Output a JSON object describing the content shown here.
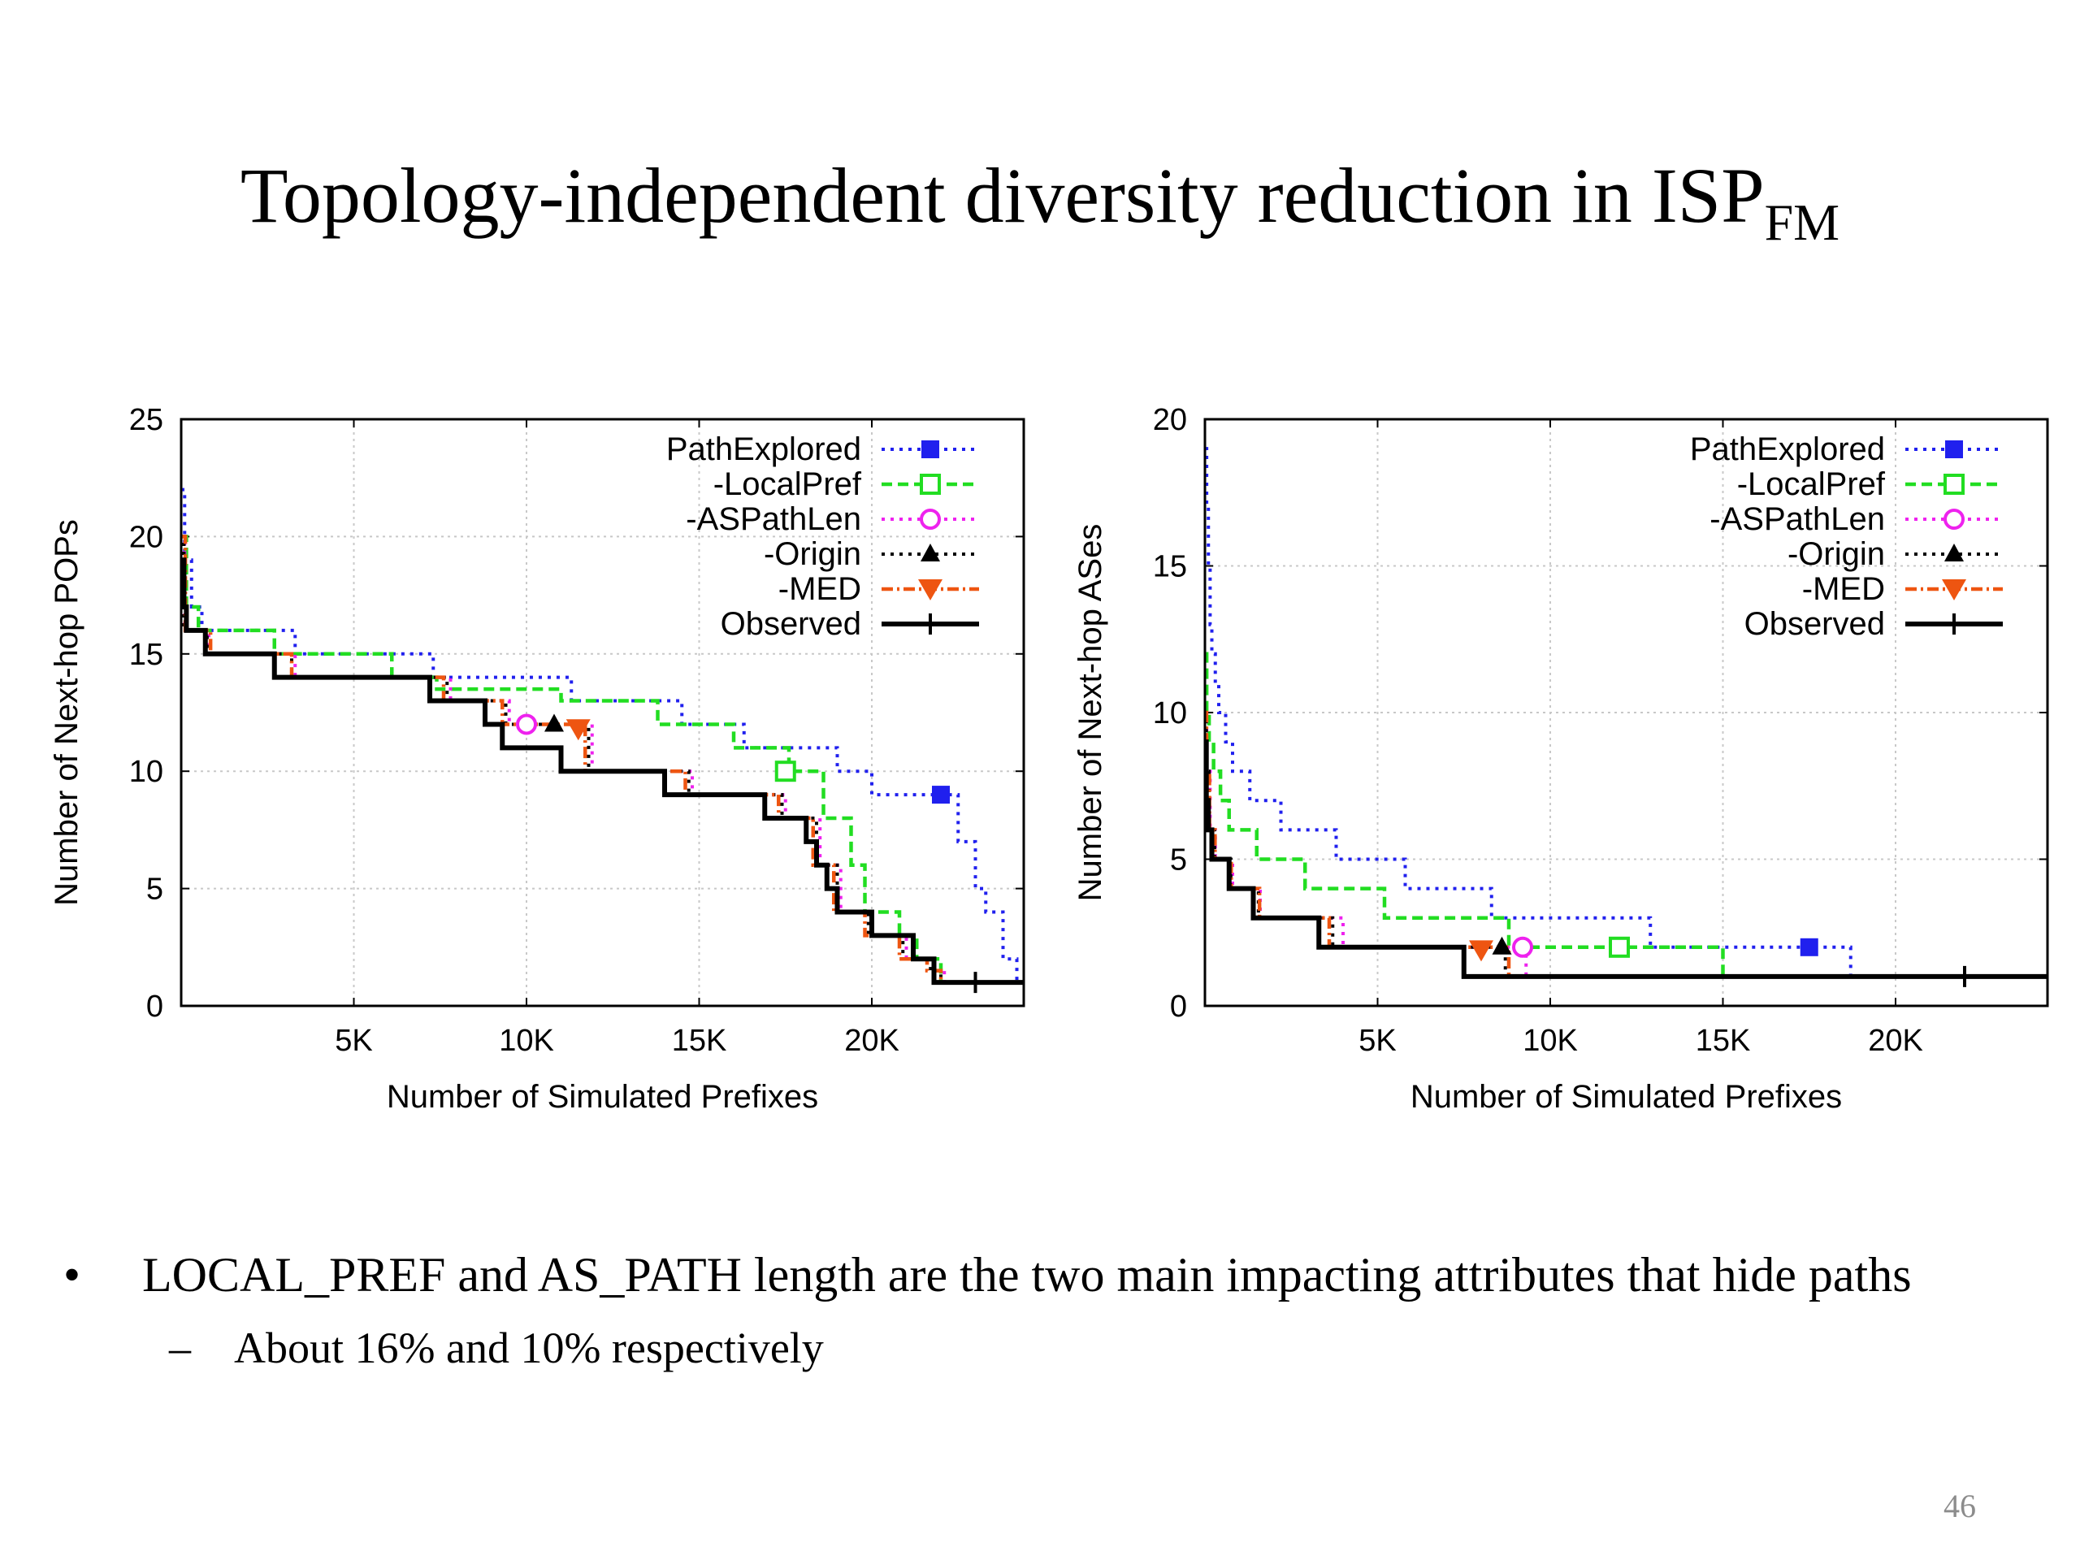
{
  "slide": {
    "title_main": "Topology-independent diversity reduction in ISP",
    "title_sub": "FM",
    "bullets": [
      {
        "text": "LOCAL_PREF and AS_PATH length are the two main impacting attributes that hide paths",
        "sub": "About 16% and 10% respectively"
      }
    ],
    "bullet_char": "•",
    "sub_bullet_char": "–",
    "page_number": "46"
  },
  "colors": {
    "PathExplored": "#2020ee",
    "-LocalPref": "#22dd22",
    "-ASPathLen": "#ee22ee",
    "-Origin": "#000000",
    "-MED": "#ee5511",
    "Observed": "#000000"
  },
  "chart_data": [
    {
      "type": "line",
      "xlabel": "Number of Simulated Prefixes",
      "ylabel": "Number of Next-hop POPs",
      "xlim": [
        0,
        24400
      ],
      "ylim": [
        0,
        25
      ],
      "xticks": [
        5000,
        10000,
        15000,
        20000
      ],
      "xtick_labels": [
        "5K",
        "10K",
        "15K",
        "20K"
      ],
      "yticks": [
        0,
        5,
        10,
        15,
        20,
        25
      ],
      "ytick_labels": [
        "0",
        "5",
        "10",
        "15",
        "20",
        "25"
      ],
      "grid": true,
      "legend_position": "top-right",
      "series": [
        {
          "name": "PathExplored",
          "marker": "filled-square",
          "dash": "dotted",
          "marker_at": [
            22000,
            9
          ],
          "x": [
            0,
            100,
            300,
            600,
            3300,
            7300,
            11300,
            14500,
            16300,
            19000,
            20000,
            22500,
            23000,
            23300,
            23800,
            24200,
            24400
          ],
          "y": [
            22,
            19,
            17,
            16,
            15,
            14,
            13,
            12,
            11,
            10,
            9,
            7,
            5,
            4,
            2,
            1,
            1
          ]
        },
        {
          "name": "-LocalPref",
          "marker": "open-square",
          "dash": "dashed",
          "marker_at": [
            17500,
            10
          ],
          "x": [
            0,
            150,
            500,
            2700,
            6100,
            7400,
            11000,
            13800,
            16000,
            17600,
            18600,
            19400,
            19800,
            20800,
            21300,
            22000,
            24400
          ],
          "y": [
            20,
            17,
            16,
            15,
            14,
            13.5,
            13,
            12,
            11,
            10,
            8,
            6,
            4,
            3,
            2,
            1,
            1
          ]
        },
        {
          "name": "-ASPathLen",
          "marker": "open-circle",
          "dash": "dotted",
          "marker_at": [
            10000,
            12
          ],
          "x": [
            0,
            100,
            800,
            3300,
            7800,
            9500,
            11900,
            14800,
            17500,
            18500,
            19100,
            20000,
            21000,
            21800,
            22100,
            24400
          ],
          "y": [
            20,
            16,
            15,
            14,
            13,
            12,
            10,
            9,
            8,
            6,
            4,
            3,
            2,
            1.5,
            1,
            1
          ]
        },
        {
          "name": "-Origin",
          "marker": "filled-triangle-up",
          "dash": "dotted",
          "marker_at": [
            10800,
            12
          ],
          "x": [
            0,
            80,
            750,
            3200,
            7700,
            9400,
            11800,
            14700,
            17400,
            18400,
            19000,
            19900,
            20900,
            21700,
            22000,
            24400
          ],
          "y": [
            20,
            16,
            15,
            14,
            13,
            12,
            10,
            9,
            8,
            6,
            4,
            3,
            2,
            1.5,
            1,
            1
          ]
        },
        {
          "name": "-MED",
          "marker": "filled-triangle-down",
          "dash": "dash-dot",
          "marker_at": [
            11500,
            11.8
          ],
          "x": [
            0,
            120,
            850,
            3200,
            7600,
            9300,
            11700,
            14600,
            17300,
            18300,
            18900,
            19800,
            20800,
            21600,
            22000,
            24400
          ],
          "y": [
            20,
            16,
            15,
            14,
            13,
            12,
            10,
            9,
            8,
            6,
            4,
            3,
            2,
            1.5,
            1,
            1
          ]
        },
        {
          "name": "Observed",
          "marker": "plus",
          "dash": "solid",
          "marker_at": [
            23000,
            1
          ],
          "x": [
            0,
            80,
            150,
            700,
            2700,
            7200,
            8800,
            9300,
            11000,
            14000,
            16900,
            18100,
            18400,
            18700,
            19000,
            20000,
            21200,
            21800,
            24400
          ],
          "y": [
            19,
            17,
            16,
            15,
            14,
            13,
            12,
            11,
            10,
            9,
            8,
            7,
            6,
            5,
            4,
            3,
            2,
            1,
            1
          ]
        }
      ]
    },
    {
      "type": "line",
      "xlabel": "Number of Simulated Prefixes",
      "ylabel": "Number of Next-hop ASes",
      "xlim": [
        0,
        24400
      ],
      "ylim": [
        0,
        20
      ],
      "xticks": [
        5000,
        10000,
        15000,
        20000
      ],
      "xtick_labels": [
        "5K",
        "10K",
        "15K",
        "20K"
      ],
      "yticks": [
        0,
        5,
        10,
        15,
        20
      ],
      "ytick_labels": [
        "0",
        "5",
        "10",
        "15",
        "20"
      ],
      "grid": true,
      "legend_position": "top-right",
      "series": [
        {
          "name": "PathExplored",
          "marker": "filled-square",
          "dash": "dotted",
          "marker_at": [
            17500,
            2
          ],
          "x": [
            0,
            50,
            100,
            150,
            200,
            300,
            400,
            600,
            800,
            1300,
            2200,
            3800,
            5800,
            8300,
            12900,
            18700,
            24400
          ],
          "y": [
            19,
            17,
            15,
            13,
            12,
            11,
            10,
            9,
            8,
            7,
            6,
            5,
            4,
            3,
            2,
            1,
            1
          ]
        },
        {
          "name": "-LocalPref",
          "marker": "open-square",
          "dash": "dashed",
          "marker_at": [
            12000,
            2
          ],
          "x": [
            0,
            50,
            120,
            250,
            450,
            700,
            1500,
            2900,
            5200,
            8800,
            15000,
            24400
          ],
          "y": [
            12,
            10,
            9,
            8,
            7,
            6,
            5,
            4,
            3,
            2,
            1,
            1
          ]
        },
        {
          "name": "-ASPathLen",
          "marker": "open-circle",
          "dash": "dotted",
          "marker_at": [
            9200,
            2
          ],
          "x": [
            0,
            50,
            150,
            300,
            800,
            1600,
            4000,
            9300,
            24400
          ],
          "y": [
            10,
            8,
            6,
            5,
            4,
            3,
            2,
            1,
            1
          ]
        },
        {
          "name": "-Origin",
          "marker": "filled-triangle-up",
          "dash": "dotted",
          "marker_at": [
            8600,
            2
          ],
          "x": [
            0,
            40,
            120,
            280,
            750,
            1550,
            3700,
            8700,
            24400
          ],
          "y": [
            10,
            8,
            6,
            5,
            4,
            3,
            2,
            1,
            1
          ]
        },
        {
          "name": "-MED",
          "marker": "filled-triangle-down",
          "dash": "dash-dot",
          "marker_at": [
            8000,
            1.9
          ],
          "x": [
            0,
            45,
            130,
            290,
            760,
            1580,
            3600,
            8800,
            24400
          ],
          "y": [
            10,
            8,
            6,
            5,
            4,
            3,
            2,
            1,
            1
          ]
        },
        {
          "name": "Observed",
          "marker": "plus",
          "dash": "solid",
          "marker_at": [
            22000,
            1
          ],
          "x": [
            0,
            40,
            100,
            200,
            700,
            1400,
            3300,
            7500,
            24400
          ],
          "y": [
            9,
            7,
            6,
            5,
            4,
            3,
            2,
            1,
            1
          ]
        }
      ]
    }
  ]
}
